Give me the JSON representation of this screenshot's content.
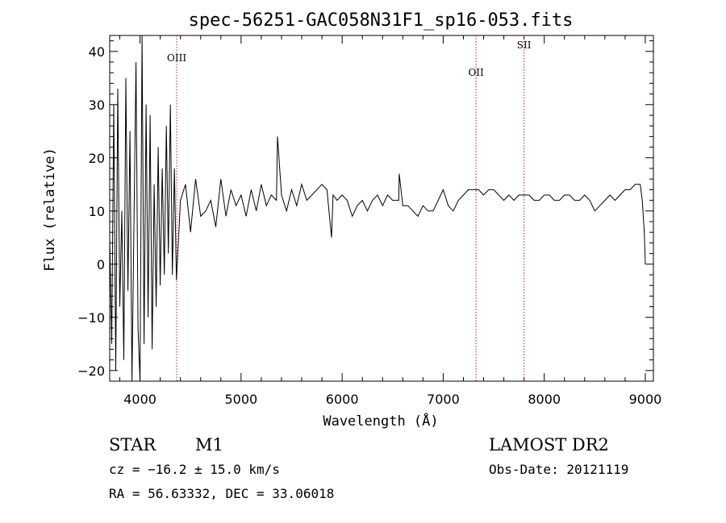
{
  "chart_data": {
    "type": "line",
    "title": "spec-56251-GAC058N31F1_sp16-053.fits",
    "xlabel": "Wavelength (Å)",
    "ylabel": "Flux (relative)",
    "xlim": [
      3700,
      9080
    ],
    "ylim": [
      -22,
      43
    ],
    "xticks": [
      4000,
      5000,
      6000,
      7000,
      8000,
      9000
    ],
    "yticks": [
      -20,
      -10,
      0,
      10,
      20,
      30,
      40
    ],
    "grid": false,
    "series": [
      {
        "x": [
          3700,
          3720,
          3740,
          3760,
          3780,
          3800,
          3820,
          3840,
          3860,
          3880,
          3900,
          3920,
          3940,
          3960,
          3980,
          4000,
          4020,
          4040,
          4060,
          4080,
          4100,
          4120,
          4140,
          4160,
          4180,
          4200,
          4220,
          4240,
          4260,
          4280,
          4300,
          4320,
          4340,
          4360,
          4400,
          4450,
          4500,
          4550,
          4600,
          4650,
          4700,
          4750,
          4800,
          4850,
          4900,
          4950,
          5000,
          5050,
          5100,
          5150,
          5200,
          5250,
          5300,
          5350,
          5360,
          5400,
          5450,
          5500,
          5550,
          5600,
          5650,
          5700,
          5750,
          5800,
          5850,
          5880,
          5895,
          5910,
          5950,
          6000,
          6050,
          6100,
          6150,
          6200,
          6250,
          6300,
          6350,
          6400,
          6450,
          6500,
          6560,
          6565,
          6600,
          6650,
          6700,
          6750,
          6800,
          6850,
          6900,
          6950,
          7000,
          7050,
          7100,
          7150,
          7200,
          7250,
          7300,
          7350,
          7400,
          7450,
          7500,
          7550,
          7600,
          7650,
          7700,
          7750,
          7800,
          7850,
          7900,
          7950,
          8000,
          8050,
          8100,
          8150,
          8200,
          8250,
          8300,
          8350,
          8400,
          8450,
          8500,
          8550,
          8600,
          8650,
          8700,
          8750,
          8800,
          8850,
          8900,
          8950,
          8970,
          8990,
          9000
        ],
        "y": [
          5,
          -15,
          30,
          -20,
          33,
          -8,
          10,
          -18,
          35,
          -5,
          25,
          -22,
          8,
          38,
          -12,
          -22,
          44,
          -15,
          30,
          -10,
          28,
          -16,
          15,
          -8,
          22,
          -4,
          18,
          -2,
          26,
          2,
          30,
          -2,
          18,
          -3,
          12,
          15,
          6,
          16,
          9,
          10,
          12,
          7,
          16,
          9,
          14,
          11,
          13,
          9,
          14,
          10,
          15,
          11,
          13,
          12,
          24,
          13,
          10,
          14,
          11,
          15,
          12,
          13,
          14,
          15,
          14,
          8,
          5,
          13,
          12,
          13,
          12,
          9,
          11,
          12,
          10,
          12,
          13,
          11,
          13,
          12,
          12,
          17,
          11,
          11,
          10,
          9,
          11,
          10,
          10,
          12,
          14,
          11,
          10,
          12,
          13,
          14,
          14,
          14,
          13,
          14,
          14,
          13,
          12,
          13,
          12,
          13,
          13,
          13,
          12,
          12,
          13,
          13,
          12,
          12,
          13,
          13,
          12,
          12,
          13,
          12,
          10,
          11,
          12,
          13,
          12,
          13,
          14,
          14,
          15,
          15,
          12,
          6,
          0
        ]
      }
    ],
    "lines": [
      {
        "label": "OIII",
        "x": 4363
      },
      {
        "label": "OII",
        "x": 7325
      },
      {
        "label": "SII",
        "x": 7800
      }
    ]
  },
  "info": {
    "class": "STAR",
    "subclass": "M1",
    "survey": "LAMOST DR2",
    "cz": "cz = −16.2 ± 15.0 km/s",
    "obs_date": "Obs-Date: 20121119",
    "radec": "RA =  56.63332, DEC =  33.06018"
  }
}
